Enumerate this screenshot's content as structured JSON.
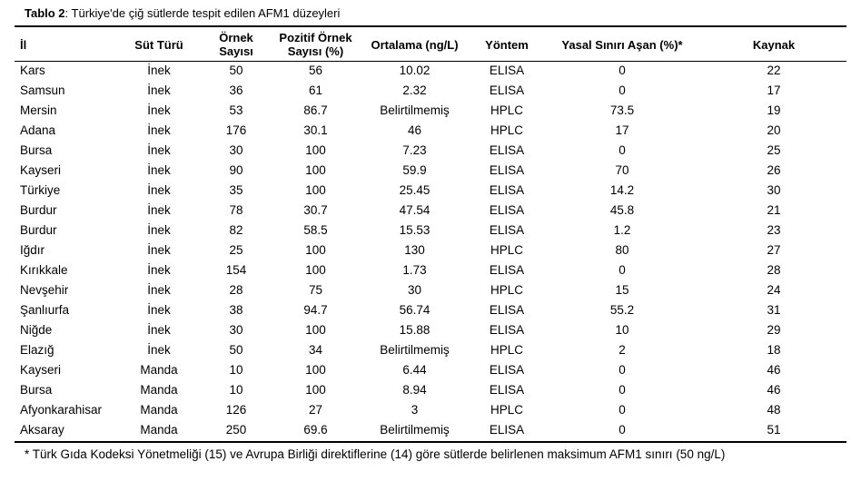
{
  "caption": {
    "label": "Tablo 2",
    "text": ": Türkiye'de çiğ sütlerde tespit edilen AFM1 düzeyleri"
  },
  "headers": {
    "il": "İl",
    "sut_turu": "Süt Türü",
    "ornek_line1": "Örnek",
    "ornek_line2": "Sayısı",
    "pozitif_line1": "Pozitif Örnek",
    "pozitif_line2": "Sayısı (%)",
    "ortalama": "Ortalama (ng/L)",
    "yontem": "Yöntem",
    "yasal": "Yasal Sınırı Aşan (%)*",
    "kaynak": "Kaynak"
  },
  "rows": [
    [
      "Kars",
      "İnek",
      "50",
      "56",
      "10.02",
      "ELISA",
      "0",
      "22"
    ],
    [
      "Samsun",
      "İnek",
      "36",
      "61",
      "2.32",
      "ELISA",
      "0",
      "17"
    ],
    [
      "Mersin",
      "İnek",
      "53",
      "86.7",
      "Belirtilmemiş",
      "HPLC",
      "73.5",
      "19"
    ],
    [
      "Adana",
      "İnek",
      "176",
      "30.1",
      "46",
      "HPLC",
      "17",
      "20"
    ],
    [
      "Bursa",
      "İnek",
      "30",
      "100",
      "7.23",
      "ELISA",
      "0",
      "25"
    ],
    [
      "Kayseri",
      "İnek",
      "90",
      "100",
      "59.9",
      "ELISA",
      "70",
      "26"
    ],
    [
      "Türkiye",
      "İnek",
      "35",
      "100",
      "25.45",
      "ELISA",
      "14.2",
      "30"
    ],
    [
      "Burdur",
      "İnek",
      "78",
      "30.7",
      "47.54",
      "ELISA",
      "45.8",
      "21"
    ],
    [
      "Burdur",
      "İnek",
      "82",
      "58.5",
      "15.53",
      "ELISA",
      "1.2",
      "23"
    ],
    [
      "Iğdır",
      "İnek",
      "25",
      "100",
      "130",
      "HPLC",
      "80",
      "27"
    ],
    [
      "Kırıkkale",
      "İnek",
      "154",
      "100",
      "1.73",
      "ELISA",
      "0",
      "28"
    ],
    [
      "Nevşehir",
      "İnek",
      "28",
      "75",
      "30",
      "HPLC",
      "15",
      "24"
    ],
    [
      "Şanlıurfa",
      "İnek",
      "38",
      "94.7",
      "56.74",
      "ELISA",
      "55.2",
      "31"
    ],
    [
      "Niğde",
      "İnek",
      "30",
      "100",
      "15.88",
      "ELISA",
      "10",
      "29"
    ],
    [
      "Elazığ",
      "İnek",
      "50",
      "34",
      "Belirtilmemiş",
      "HPLC",
      "2",
      "18"
    ],
    [
      "Kayseri",
      "Manda",
      "10",
      "100",
      "6.44",
      "ELISA",
      "0",
      "46"
    ],
    [
      "Bursa",
      "Manda",
      "10",
      "100",
      "8.94",
      "ELISA",
      "0",
      "46"
    ],
    [
      "Afyonkarahisar",
      "Manda",
      "126",
      "27",
      "3",
      "HPLC",
      "0",
      "48"
    ],
    [
      "Aksaray",
      "Manda",
      "250",
      "69.6",
      "Belirtilmemiş",
      "ELISA",
      "0",
      "51"
    ]
  ],
  "footnote": "* Türk Gıda Kodeksi Yönetmeliği (15) ve Avrupa Birliği direktiflerine (14) göre sütlerde belirlenen maksimum AFM1 sınırı (50 ng/L)"
}
